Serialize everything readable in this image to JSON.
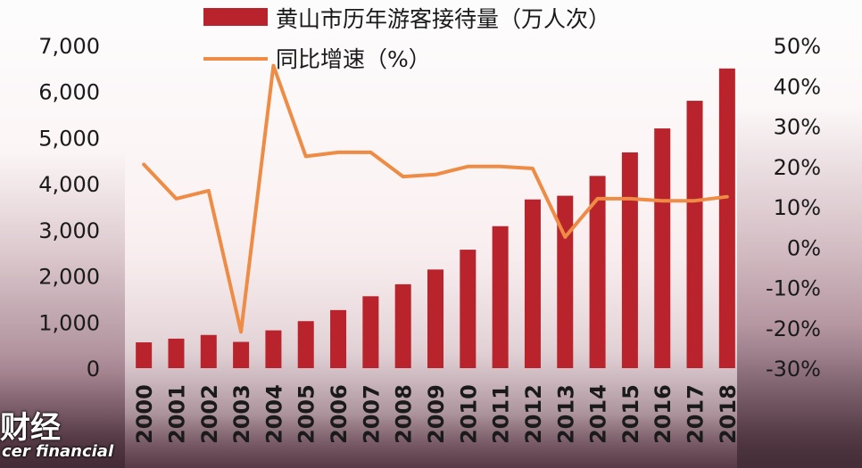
{
  "chart_data": {
    "type": "bar+line",
    "categories": [
      "2000",
      "2001",
      "2002",
      "2003",
      "2004",
      "2005",
      "2006",
      "2007",
      "2008",
      "2009",
      "2010",
      "2011",
      "2012",
      "2013",
      "2014",
      "2015",
      "2016",
      "2017",
      "2018"
    ],
    "series": [
      {
        "name": "黄山市历年游客接待量（万人次）",
        "type": "bar",
        "axis": "left",
        "color": "#b8232c",
        "values": [
          560,
          640,
          720,
          570,
          820,
          1020,
          1260,
          1560,
          1820,
          2140,
          2570,
          3080,
          3660,
          3740,
          4170,
          4680,
          5200,
          5800,
          6500
        ]
      },
      {
        "name": "同比增速（%）",
        "type": "line",
        "axis": "right",
        "color": "#ee8b45",
        "values": [
          20.5,
          12,
          14,
          -21,
          45,
          22.5,
          23.5,
          23.5,
          17.5,
          18,
          20,
          20,
          19.5,
          2.5,
          12,
          12,
          11.5,
          11.5,
          12.5
        ]
      }
    ],
    "left_axis": {
      "min": 0,
      "max": 7000,
      "ticks": [
        "0",
        "1,000",
        "2,000",
        "3,000",
        "4,000",
        "5,000",
        "6,000",
        "7,000"
      ]
    },
    "right_axis": {
      "min": -30,
      "max": 50,
      "ticks": [
        "-30%",
        "-20%",
        "-10%",
        "0%",
        "10%",
        "20%",
        "30%",
        "40%",
        "50%"
      ]
    },
    "legend_position": "top-center",
    "grid": false
  },
  "watermark": {
    "line1": "财经",
    "line2": "cer financial"
  }
}
